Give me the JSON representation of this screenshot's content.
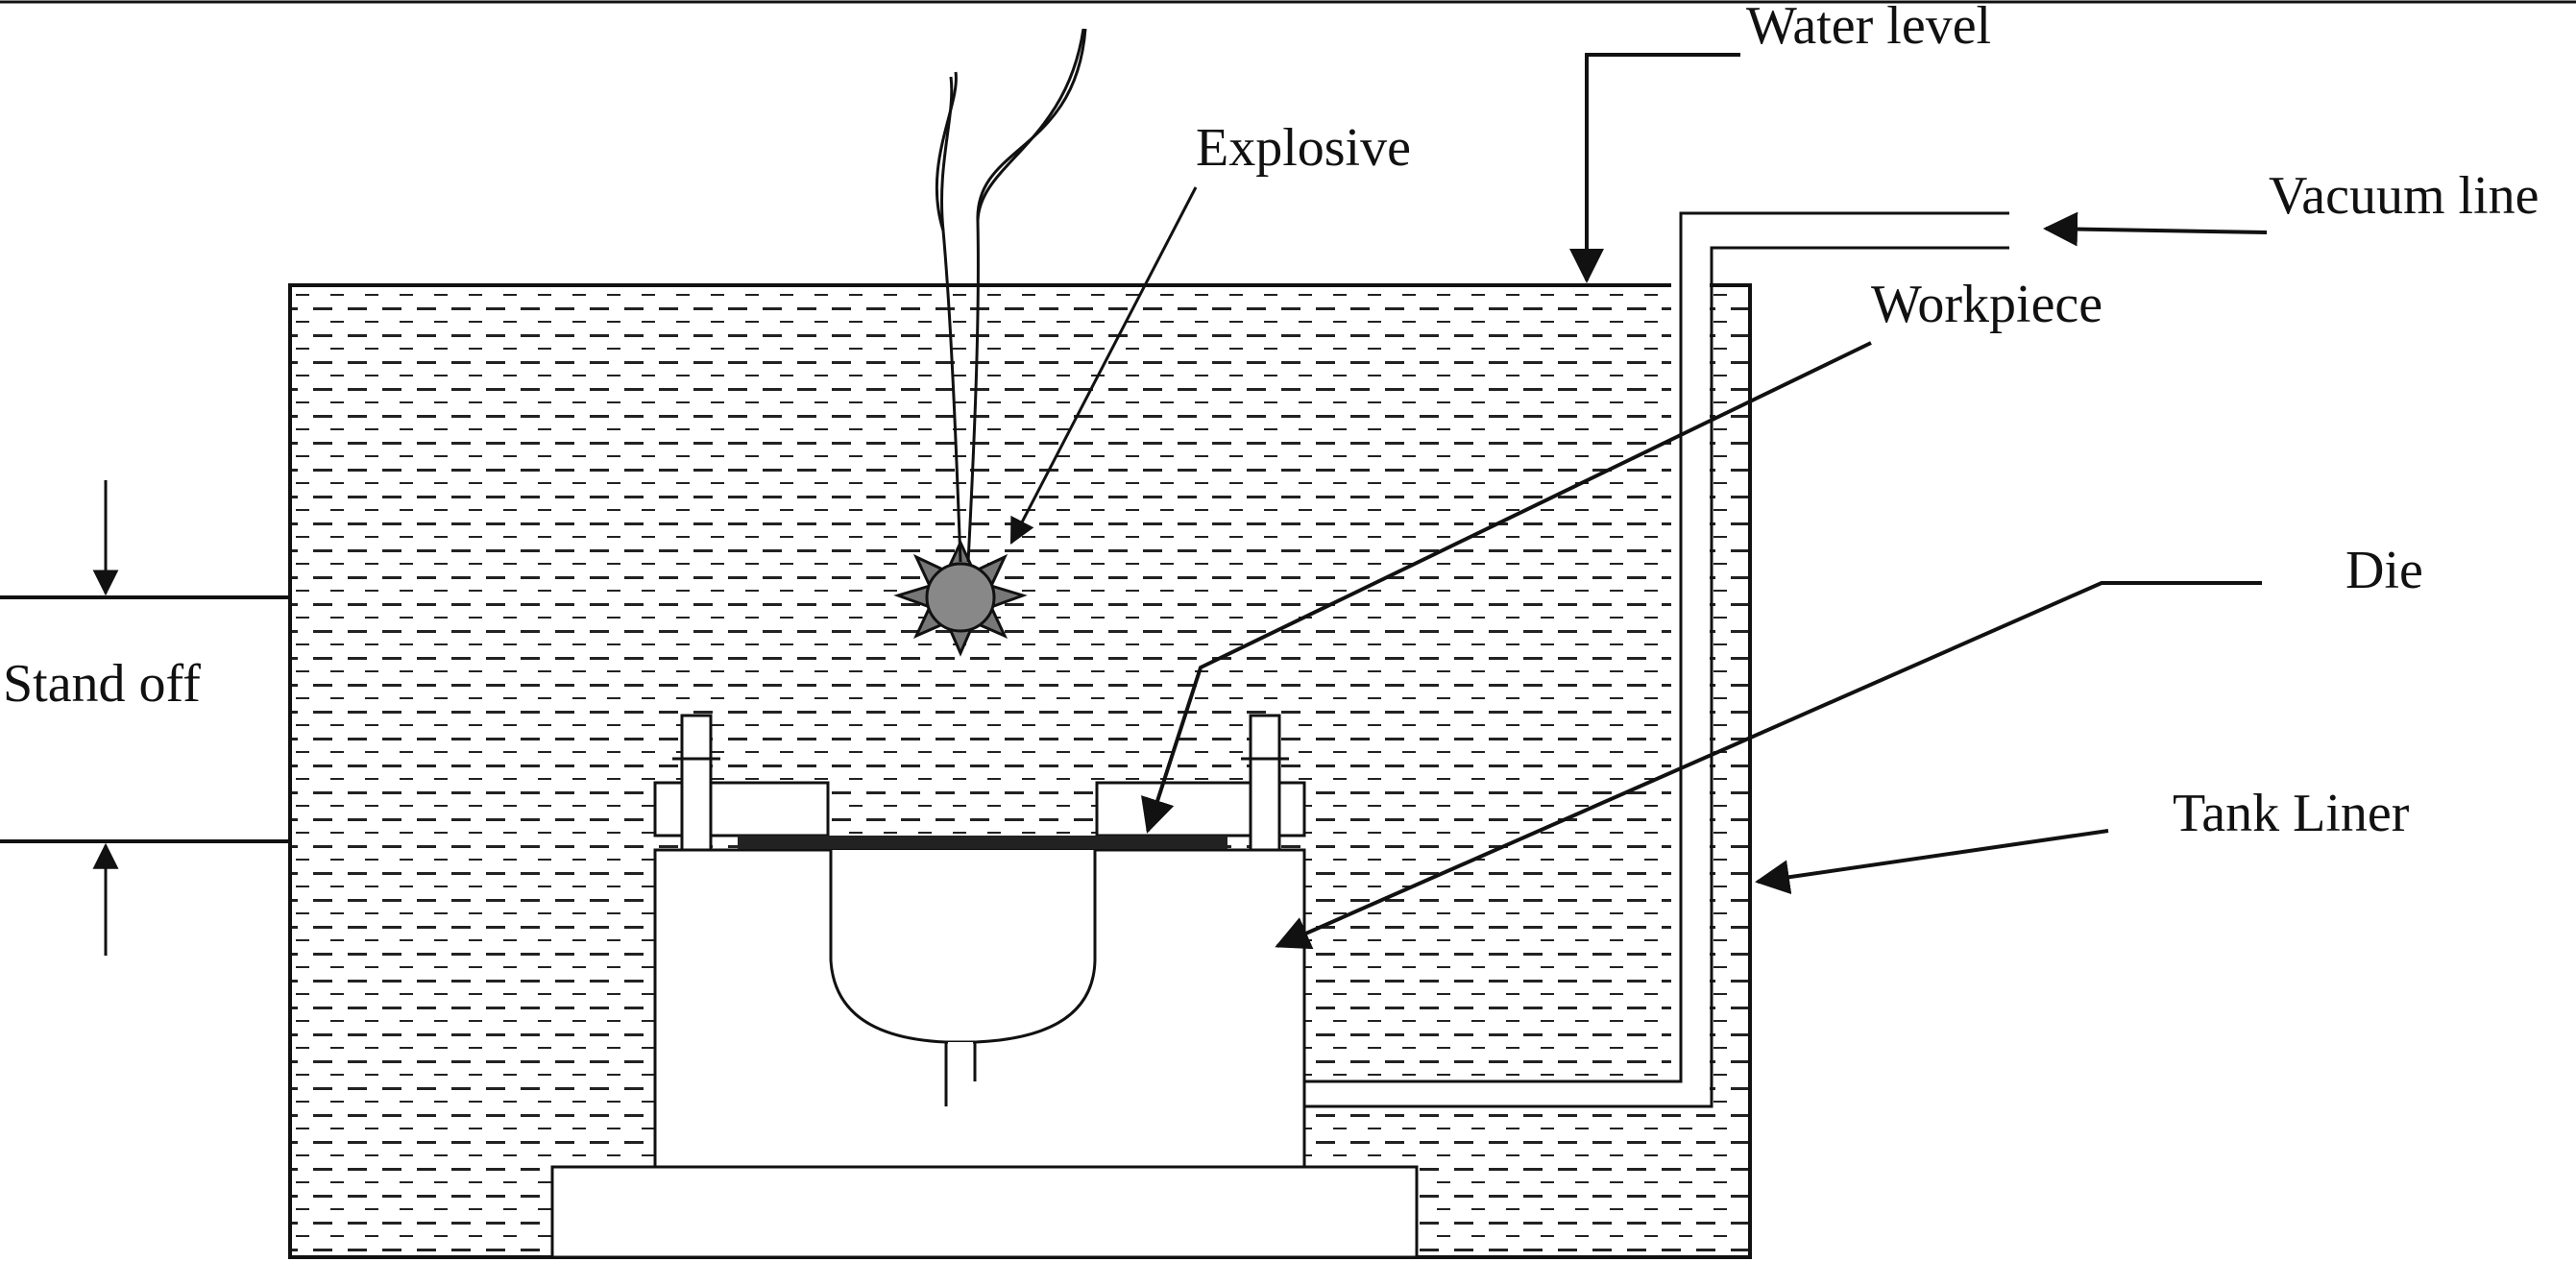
{
  "labels": {
    "water_level": "Water level",
    "explosive": "Explosive",
    "vacuum_line": "Vacuum line",
    "workpiece": "Workpiece",
    "die": "Die",
    "stand_off": "Stand off",
    "tank_liner": "Tank Liner"
  },
  "colors": {
    "line": "#111111",
    "water_dash": "#222222",
    "explosive_fill": "#777777",
    "background": "#ffffff"
  }
}
